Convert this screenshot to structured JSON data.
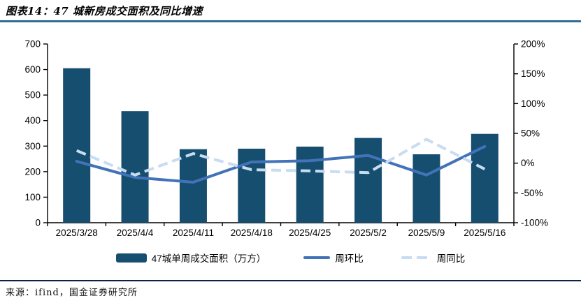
{
  "page": {
    "title": "图表14：47 城新房成交面积及同比增速",
    "source": "来源：ifind，国金证券研究所"
  },
  "colors": {
    "bar": "#164e6f",
    "wow_line": "#4273b8",
    "yoy_line": "#c8dcf2",
    "title_rule": "#2e6e91",
    "footer_rule": "#0c2340",
    "axis": "#000000"
  },
  "chart_data": {
    "type": "bar",
    "subtype": "combo-bar-line",
    "title": "图表14：47 城新房成交面积及同比增速",
    "categories": [
      "2025/3/28",
      "2025/4/4",
      "2025/4/11",
      "2025/4/18",
      "2025/4/25",
      "2025/5/2",
      "2025/5/9",
      "2025/5/16"
    ],
    "series": [
      {
        "name": "47城单周成交面积（万方）",
        "type": "bar",
        "axis": "left",
        "color": "#164e6f",
        "values": [
          605,
          437,
          288,
          290,
          298,
          332,
          268,
          348
        ]
      },
      {
        "name": "周环比",
        "type": "line",
        "style": "solid",
        "axis": "right",
        "color": "#4273b8",
        "unit": "%",
        "values": [
          3,
          -24,
          -32,
          2,
          4,
          13,
          -20,
          28
        ]
      },
      {
        "name": "周同比",
        "type": "line",
        "style": "dashed",
        "axis": "right",
        "color": "#c8dcf2",
        "unit": "%",
        "values": [
          21,
          -20,
          16,
          -11,
          -13,
          -16,
          40,
          -10
        ]
      }
    ],
    "left_axis": {
      "min": 0,
      "max": 700,
      "labels": [
        "0",
        "100",
        "200",
        "300",
        "400",
        "500",
        "600",
        "700"
      ]
    },
    "right_axis": {
      "min": -100,
      "max": 200,
      "labels": [
        "-100%",
        "-50%",
        "0%",
        "50%",
        "100%",
        "150%",
        "200%"
      ]
    },
    "grid": false,
    "legend_position": "bottom"
  }
}
